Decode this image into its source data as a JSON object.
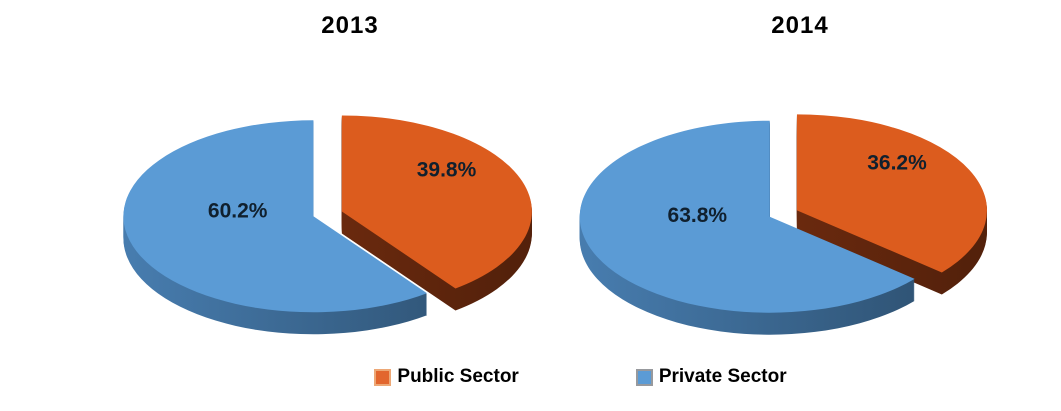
{
  "page": {
    "background": "#ffffff"
  },
  "legend": {
    "items": [
      {
        "label": "Public Sector",
        "color": "#E2662E",
        "border": "#EDA876"
      },
      {
        "label": "Private Sector",
        "color": "#5B9BD5",
        "border": "#97999D"
      }
    ]
  },
  "chart_data": [
    {
      "type": "pie",
      "title": "2013",
      "style": "3d-exploded",
      "start_angle_deg": -90,
      "direction": "clockwise",
      "categories": [
        "Public Sector",
        "Private Sector"
      ],
      "values": [
        39.8,
        60.2
      ],
      "value_labels": [
        "39.8%",
        "60.2%"
      ],
      "colors": [
        "#DC5C1E",
        "#5B9BD5"
      ],
      "wall_colors": [
        "#6E2B0F",
        "#3A668F"
      ],
      "label_color": "#10202E"
    },
    {
      "type": "pie",
      "title": "2014",
      "style": "3d-exploded",
      "start_angle_deg": -90,
      "direction": "clockwise",
      "categories": [
        "Public Sector",
        "Private Sector"
      ],
      "values": [
        36.2,
        63.8
      ],
      "value_labels": [
        "36.2%",
        "63.8%"
      ],
      "colors": [
        "#DC5C1E",
        "#5B9BD5"
      ],
      "wall_colors": [
        "#6E2B0F",
        "#3A668F"
      ],
      "label_color": "#10202E"
    }
  ]
}
